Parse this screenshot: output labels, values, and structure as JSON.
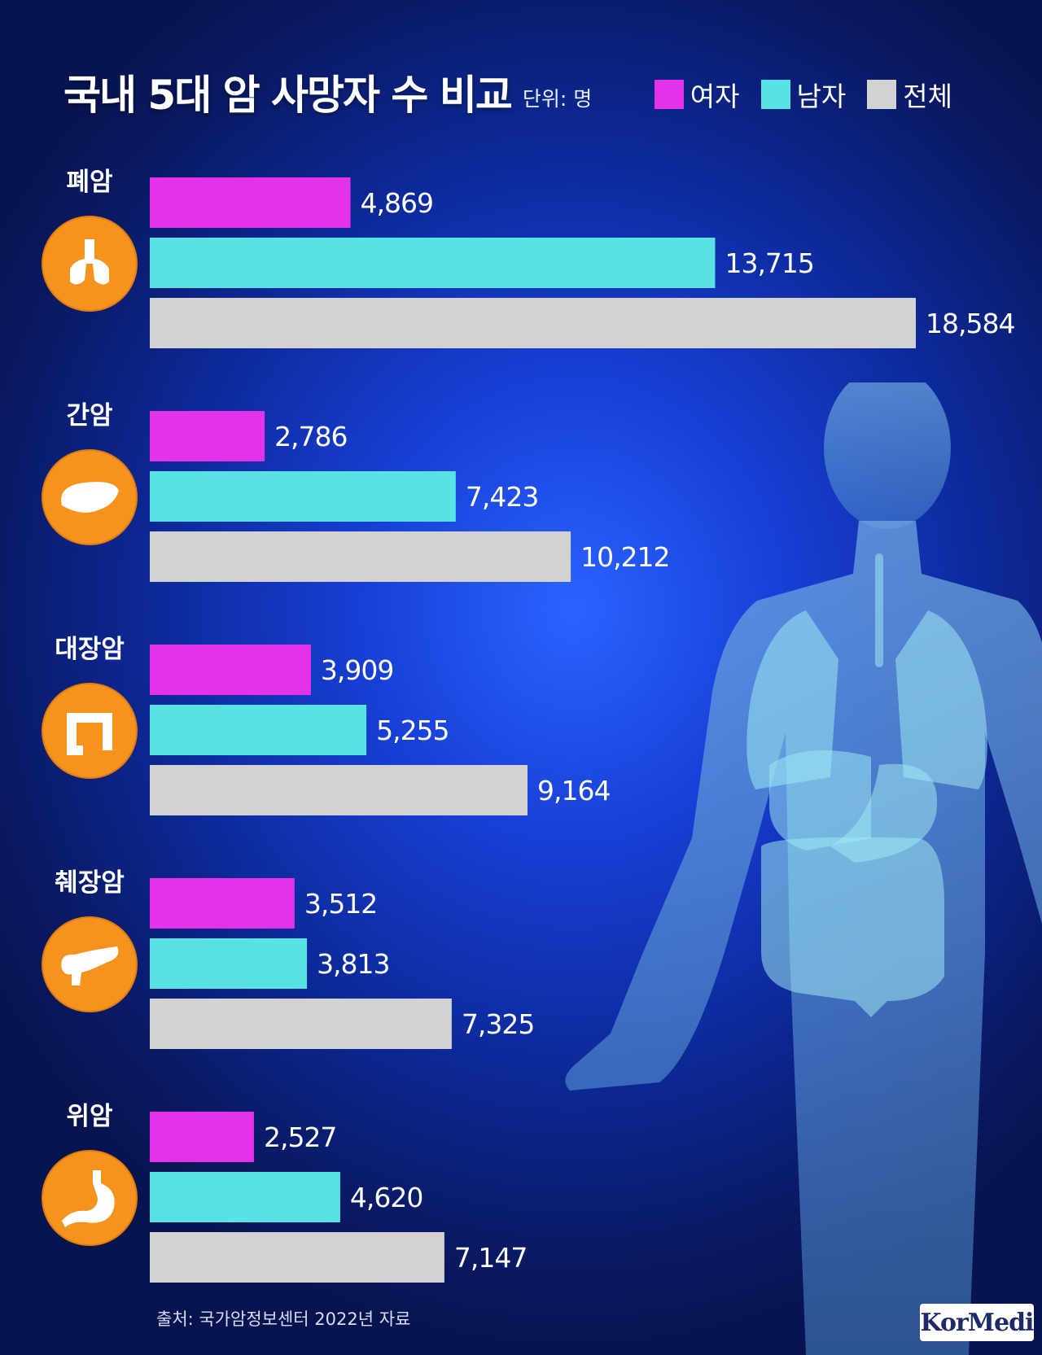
{
  "title": "국내 5대 암 사망자 수 비교",
  "unit": "단위: 명",
  "source": "출처: 국가암정보센터 2022년 자료",
  "logo": {
    "text": "KorMedi",
    "icon": "medical-cross-logo"
  },
  "colors": {
    "female": "#e432e8",
    "male": "#58e2e4",
    "total": "#d2d2d2",
    "icon_bg": "#f6931e"
  },
  "chart_data": {
    "type": "bar",
    "orientation": "horizontal",
    "title": "국내 5대 암 사망자 수 비교",
    "unit": "단위: 명",
    "legend_position": "top-right",
    "grid": false,
    "xlim": [
      0,
      18584
    ],
    "categories": [
      "폐암",
      "간암",
      "대장암",
      "췌장암",
      "위암"
    ],
    "icons": [
      "lungs-icon",
      "liver-icon",
      "colon-icon",
      "pancreas-icon",
      "stomach-icon"
    ],
    "series": [
      {
        "name": "여자",
        "color": "#e432e8",
        "values": [
          4869,
          2786,
          3909,
          3512,
          2527
        ]
      },
      {
        "name": "남자",
        "color": "#58e2e4",
        "values": [
          13715,
          7423,
          5255,
          3813,
          4620
        ]
      },
      {
        "name": "전체",
        "color": "#d2d2d2",
        "values": [
          18584,
          10212,
          9164,
          7325,
          7147
        ]
      }
    ],
    "value_labels": [
      [
        "4,869",
        "13,715",
        "18,584"
      ],
      [
        "2,786",
        "7,423",
        "10,212"
      ],
      [
        "3,909",
        "5,255",
        "9,164"
      ],
      [
        "3,512",
        "3,813",
        "7,325"
      ],
      [
        "2,527",
        "4,620",
        "7,147"
      ]
    ]
  }
}
